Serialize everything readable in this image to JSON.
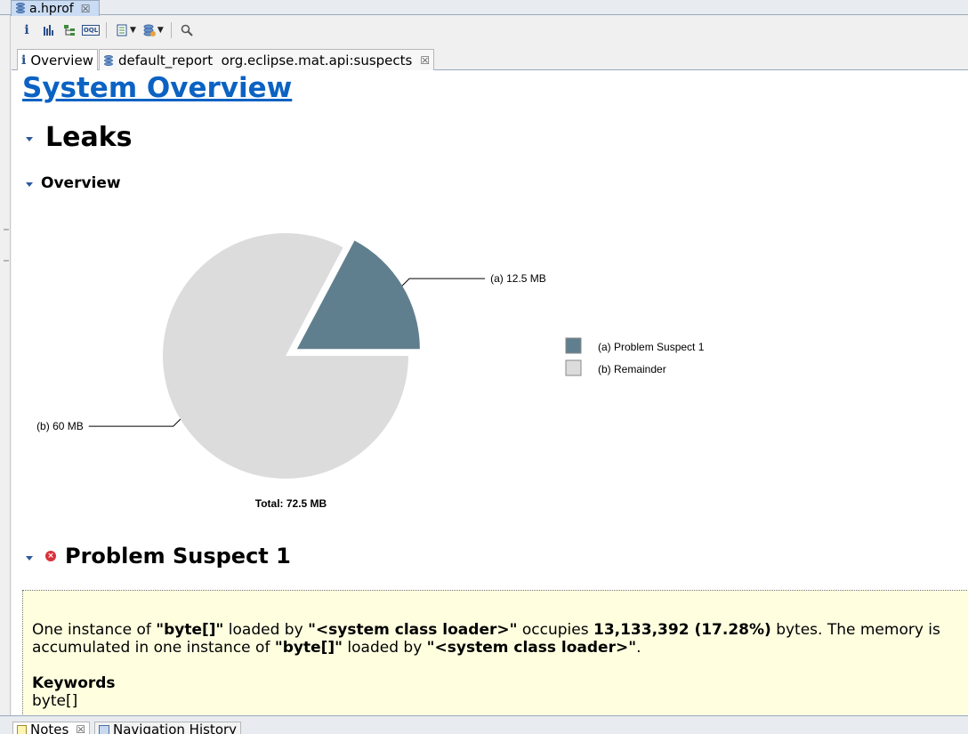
{
  "editor_tab": {
    "label": "a.hprof",
    "close": "☒"
  },
  "toolbar": {
    "buttons": [
      "info-icon",
      "histogram-icon",
      "dominator-tree-icon",
      "oql-icon",
      "query-browser-icon",
      "heap-dump-overview-icon",
      "search-icon"
    ],
    "info_glyph": "i",
    "oql_glyph": "OQL",
    "dropdown_glyph": "▼"
  },
  "inner_tabs": [
    {
      "label": "Overview",
      "icon": "info-icon",
      "glyph": "i"
    },
    {
      "label": "default_report  org.eclipse.mat.api:suspects",
      "icon": "report-icon",
      "close": "☒"
    }
  ],
  "page": {
    "title": "System Overview",
    "leaks_heading": "Leaks",
    "overview_heading": "Overview",
    "suspect_heading": "Problem Suspect 1",
    "error_glyph": "×"
  },
  "chart_data": {
    "type": "pie",
    "slices": [
      {
        "id": "(a)",
        "label": "12.5 MB",
        "value": 12.5,
        "legend": "Problem Suspect 1",
        "color": "#607f8e",
        "exploded": true
      },
      {
        "id": "(b)",
        "label": "60 MB",
        "value": 60,
        "legend": "Remainder",
        "color": "#dcdcdc",
        "exploded": false
      }
    ],
    "total_label": "Total: 72.5 MB",
    "legend_placement": "right"
  },
  "suspect": {
    "p1": "One instance of ",
    "p2": "\"byte[]\"",
    "p3": " loaded by ",
    "p4": "\"<system class loader>\"",
    "p5": " occupies ",
    "p6": "13,133,392 (17.28%)",
    "p7": " bytes. The memory is accumulated in one instance of ",
    "p8": "\"byte[]\"",
    "p9": " loaded by ",
    "p10": "\"<system class loader>\"",
    "p11": ".",
    "keywords_title": "Keywords",
    "keywords_value": "byte[]"
  },
  "bottom_tabs": [
    {
      "label": "Notes",
      "icon": "notes-icon",
      "close": "☒"
    },
    {
      "label": "Navigation History",
      "icon": "navigation-history-icon"
    }
  ]
}
